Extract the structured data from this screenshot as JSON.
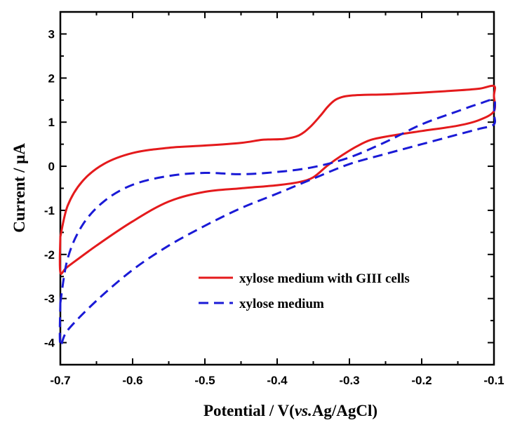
{
  "chart_data": {
    "type": "line",
    "title": "",
    "xlabel_parts": [
      "Potential / V(",
      "vs.",
      "Ag/AgCl)"
    ],
    "ylabel": "Current / μA",
    "xlim": [
      -0.7,
      -0.1
    ],
    "ylim": [
      -4.5,
      3.5
    ],
    "xticks": [
      -0.7,
      -0.6,
      -0.5,
      -0.4,
      -0.3,
      -0.2,
      -0.1
    ],
    "yticks": [
      -4,
      -3,
      -2,
      -1,
      0,
      1,
      2,
      3
    ],
    "grid": false,
    "legend_position": "lower-right",
    "series": [
      {
        "name": "xylose medium with GIII cells",
        "color": "#e41a1c",
        "style": "solid",
        "x": [
          -0.7,
          -0.69,
          -0.67,
          -0.64,
          -0.6,
          -0.55,
          -0.5,
          -0.45,
          -0.42,
          -0.39,
          -0.37,
          -0.355,
          -0.34,
          -0.33,
          -0.32,
          -0.31,
          -0.3,
          -0.28,
          -0.25,
          -0.2,
          -0.15,
          -0.12,
          -0.1,
          -0.1,
          -0.1,
          -0.12,
          -0.15,
          -0.2,
          -0.24,
          -0.27,
          -0.29,
          -0.31,
          -0.33,
          -0.35,
          -0.37,
          -0.4,
          -0.45,
          -0.5,
          -0.55,
          -0.6,
          -0.65,
          -0.69,
          -0.7,
          -0.7
        ],
        "y": [
          -1.6,
          -0.9,
          -0.35,
          0.05,
          0.3,
          0.42,
          0.47,
          0.53,
          0.6,
          0.62,
          0.7,
          0.88,
          1.15,
          1.35,
          1.5,
          1.57,
          1.6,
          1.62,
          1.63,
          1.67,
          1.72,
          1.76,
          1.82,
          1.6,
          1.25,
          1.05,
          0.92,
          0.8,
          0.7,
          0.6,
          0.45,
          0.25,
          0.02,
          -0.25,
          -0.36,
          -0.43,
          -0.5,
          -0.58,
          -0.8,
          -1.25,
          -1.8,
          -2.28,
          -2.4,
          -1.6
        ]
      },
      {
        "name": "xylose medium",
        "color": "#1a1ad6",
        "style": "dashed",
        "x": [
          -0.7,
          -0.69,
          -0.67,
          -0.64,
          -0.6,
          -0.55,
          -0.5,
          -0.45,
          -0.4,
          -0.35,
          -0.3,
          -0.25,
          -0.2,
          -0.15,
          -0.12,
          -0.1,
          -0.1,
          -0.1,
          -0.12,
          -0.15,
          -0.2,
          -0.25,
          -0.3,
          -0.35,
          -0.4,
          -0.45,
          -0.5,
          -0.55,
          -0.6,
          -0.65,
          -0.69,
          -0.7,
          -0.7
        ],
        "y": [
          -3.1,
          -2.1,
          -1.35,
          -0.8,
          -0.42,
          -0.22,
          -0.15,
          -0.18,
          -0.13,
          -0.02,
          0.2,
          0.55,
          0.95,
          1.25,
          1.42,
          1.5,
          1.2,
          0.95,
          0.85,
          0.72,
          0.5,
          0.28,
          0.05,
          -0.28,
          -0.62,
          -0.95,
          -1.35,
          -1.8,
          -2.35,
          -3.05,
          -3.72,
          -4.05,
          -3.1
        ]
      }
    ]
  }
}
